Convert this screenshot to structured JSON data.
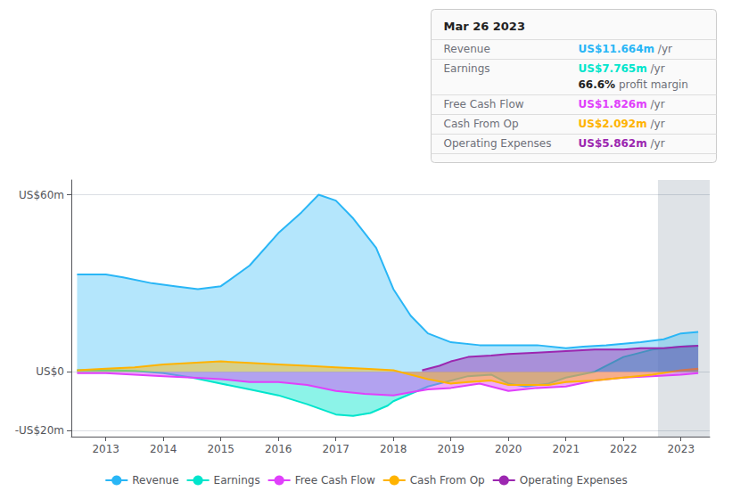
{
  "chart_data": {
    "type": "area",
    "xlim": [
      2012.4,
      2023.5
    ],
    "xticks": [
      2013,
      2014,
      2015,
      2016,
      2017,
      2018,
      2019,
      2020,
      2021,
      2022,
      2023
    ],
    "ylim": [
      -22,
      65
    ],
    "yticks": [
      {
        "value": 60,
        "label": "US$60m"
      },
      {
        "value": 0,
        "label": "US$0"
      },
      {
        "value": -20,
        "label": "-US$20m"
      }
    ],
    "grid": true,
    "legend": "bottom",
    "series": [
      {
        "name": "Revenue",
        "color": "#29b6f6",
        "x": [
          2012.5,
          2013.0,
          2013.3,
          2013.8,
          2014.2,
          2014.6,
          2015.0,
          2015.5,
          2016.0,
          2016.4,
          2016.7,
          2017.0,
          2017.3,
          2017.7,
          2018.0,
          2018.3,
          2018.6,
          2019.0,
          2019.5,
          2020.0,
          2020.5,
          2021.0,
          2021.3,
          2021.7,
          2022.0,
          2022.3,
          2022.7,
          2023.0,
          2023.3
        ],
        "values": [
          33,
          33,
          32,
          30,
          29,
          28,
          29,
          36,
          47,
          54,
          60,
          58,
          52,
          42,
          28,
          19,
          13,
          10,
          9,
          9,
          9,
          8,
          8.5,
          9,
          9.5,
          10,
          11,
          13,
          13.5
        ]
      },
      {
        "name": "Earnings",
        "color": "#00e5cc",
        "x": [
          2012.5,
          2013.0,
          2013.5,
          2014.0,
          2014.5,
          2015.0,
          2015.5,
          2016.0,
          2016.5,
          2017.0,
          2017.3,
          2017.6,
          2017.9,
          2018.0,
          2018.3,
          2018.6,
          2019.0,
          2019.3,
          2019.7,
          2020.0,
          2020.3,
          2020.7,
          2021.0,
          2021.5,
          2022.0,
          2022.5,
          2023.0,
          2023.3
        ],
        "values": [
          0.5,
          0.5,
          0.3,
          -0.5,
          -2.0,
          -4.0,
          -6.0,
          -8.0,
          -11.0,
          -14.5,
          -15.0,
          -14.0,
          -11.5,
          -10.0,
          -7.5,
          -5.0,
          -3.0,
          -1.5,
          -1.0,
          -4.0,
          -5.0,
          -4.0,
          -2.0,
          0.0,
          5.0,
          7.5,
          8.5,
          8.8
        ]
      },
      {
        "name": "Free Cash Flow",
        "color": "#e040fb",
        "x": [
          2012.5,
          2013.0,
          2013.5,
          2014.0,
          2014.5,
          2015.0,
          2015.5,
          2016.0,
          2016.5,
          2017.0,
          2017.5,
          2018.0,
          2018.3,
          2018.6,
          2019.0,
          2019.5,
          2020.0,
          2020.5,
          2021.0,
          2021.5,
          2022.0,
          2022.5,
          2023.0,
          2023.3
        ],
        "values": [
          -0.5,
          -0.5,
          -1.0,
          -1.5,
          -2.0,
          -2.5,
          -3.5,
          -3.5,
          -4.5,
          -6.5,
          -7.5,
          -8.0,
          -7.0,
          -6.0,
          -5.5,
          -4.0,
          -6.5,
          -5.5,
          -5.0,
          -3.0,
          -2.0,
          -1.5,
          -1.0,
          -0.5
        ]
      },
      {
        "name": "Cash From Op",
        "color": "#ffb300",
        "x": [
          2012.5,
          2013.0,
          2013.5,
          2014.0,
          2014.5,
          2015.0,
          2015.5,
          2016.0,
          2016.5,
          2017.0,
          2017.5,
          2018.0,
          2018.3,
          2018.6,
          2019.0,
          2019.3,
          2019.7,
          2020.0,
          2020.3,
          2020.7,
          2021.0,
          2021.5,
          2022.0,
          2022.5,
          2023.0,
          2023.3
        ],
        "values": [
          0.5,
          1.0,
          1.5,
          2.5,
          3.0,
          3.5,
          3.0,
          2.5,
          2.0,
          1.5,
          1.0,
          0.5,
          -1.0,
          -2.5,
          -4.0,
          -3.5,
          -3.0,
          -4.5,
          -4.5,
          -4.5,
          -3.5,
          -3.0,
          -2.0,
          -1.0,
          0.5,
          1.0
        ]
      },
      {
        "name": "Operating Expenses",
        "color": "#9c27b0",
        "x": [
          2018.5,
          2018.8,
          2019.0,
          2019.3,
          2019.7,
          2020.0,
          2020.5,
          2021.0,
          2021.5,
          2022.0,
          2022.3,
          2022.7,
          2023.0,
          2023.3
        ],
        "values": [
          0.5,
          2.0,
          3.5,
          5.0,
          5.5,
          6.0,
          6.5,
          7.0,
          7.5,
          7.5,
          8.0,
          8.0,
          8.5,
          8.8
        ]
      }
    ],
    "shaded_x_range": [
      2022.6,
      2023.5
    ],
    "annotation": {
      "title": "Mar 26 2023",
      "rows": [
        {
          "label": "Revenue",
          "value": "US$11.664m",
          "unit": " /yr",
          "color": "#29b6f6"
        },
        {
          "label": "Earnings",
          "value": "US$7.765m",
          "unit": " /yr",
          "color": "#00e5cc",
          "extra_value": "66.6%",
          "extra_text": " profit margin"
        },
        {
          "label": "Free Cash Flow",
          "value": "US$1.826m",
          "unit": " /yr",
          "color": "#e040fb"
        },
        {
          "label": "Cash From Op",
          "value": "US$2.092m",
          "unit": " /yr",
          "color": "#ffb300"
        },
        {
          "label": "Operating Expenses",
          "value": "US$5.862m",
          "unit": " /yr",
          "color": "#9c27b0"
        }
      ]
    }
  }
}
